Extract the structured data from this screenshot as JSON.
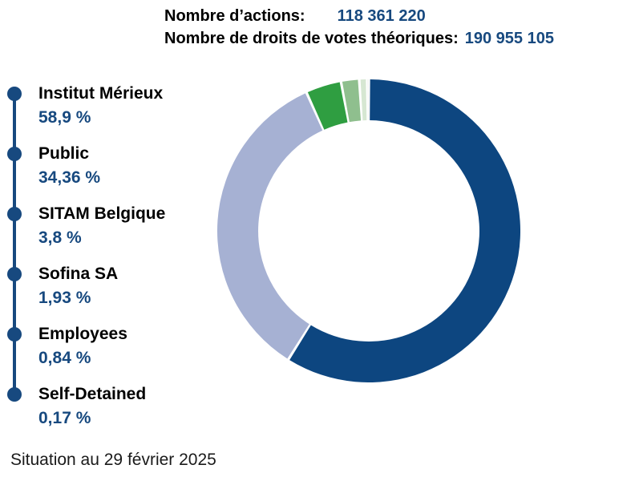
{
  "header": {
    "shares_label": "Nombre d’actions:",
    "shares_value": "118 361 220",
    "voting_rights_label": "Nombre de droits de votes théoriques:",
    "voting_rights_value": "190 955 105"
  },
  "legend": {
    "items": [
      {
        "id": "institut-merieux",
        "label": "Institut Mérieux",
        "pct": "58,9 %"
      },
      {
        "id": "public",
        "label": "Public",
        "pct": "34,36 %"
      },
      {
        "id": "sitam-belgique",
        "label": "SITAM Belgique",
        "pct": "3,8 %"
      },
      {
        "id": "sofina-sa",
        "label": "Sofina SA",
        "pct": "1,93 %"
      },
      {
        "id": "employees",
        "label": "Employees",
        "pct": "0,84 %"
      },
      {
        "id": "self-detained",
        "label": "Self-Detained",
        "pct": "0,17 %"
      }
    ],
    "bullet_color": "#17497F",
    "connector_color": "#17497F",
    "pct_color": "#17497F"
  },
  "chart_data": {
    "type": "pie",
    "subtype": "donut",
    "categories": [
      "Institut Mérieux",
      "Public",
      "SITAM Belgique",
      "Sofina SA",
      "Employees",
      "Self-Detained"
    ],
    "values": [
      58.9,
      34.36,
      3.8,
      1.93,
      0.84,
      0.17
    ],
    "value_labels": [
      "58,9 %",
      "34,36 %",
      "3,8 %",
      "1,93 %",
      "0,84 %",
      "0,17 %"
    ],
    "colors": [
      "#0D4680",
      "#A6B1D3",
      "#2F9E41",
      "#8FBF8E",
      "#D6E7D2",
      "#E9EDEA"
    ],
    "title": "",
    "start_angle_deg": 0,
    "direction": "clockwise",
    "inner_radius_ratio": 0.73,
    "segment_gap_deg": 1.0,
    "legend_position": "left",
    "units": "percent",
    "total": 100
  },
  "footer": {
    "caption": "Situation au 29 février 2025"
  }
}
